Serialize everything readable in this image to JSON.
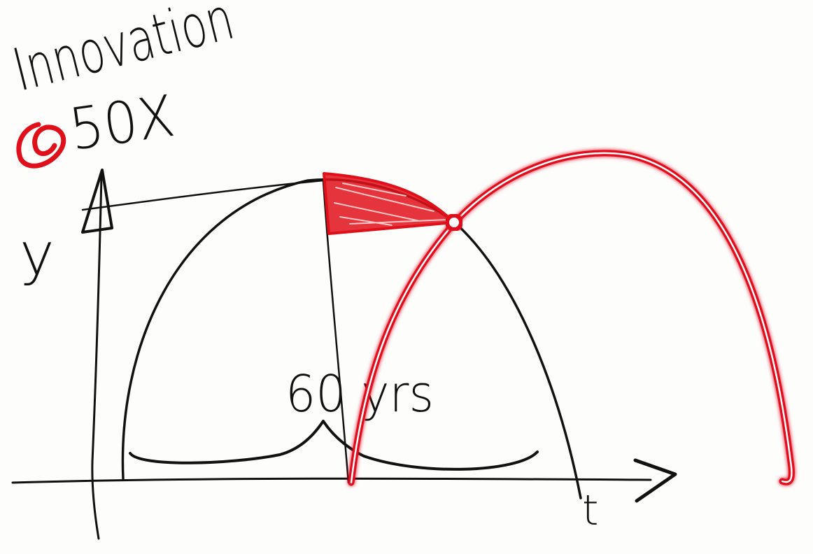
{
  "title": {
    "line1": "Innovation",
    "line2": "50X"
  },
  "axes": {
    "ylabel": "y",
    "xlabel": "t"
  },
  "annotation": {
    "brace_label": "60 yrs"
  },
  "colors": {
    "ink": "#111111",
    "highlight": "#e0101a",
    "glow": "#ff8a8a",
    "background": "#fdfdfc"
  },
  "icons": {
    "bullet": "red-circle-bullet"
  }
}
